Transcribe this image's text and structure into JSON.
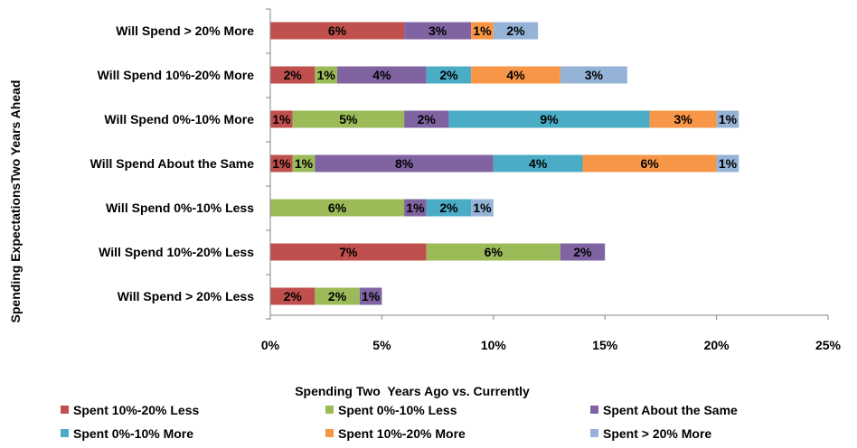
{
  "chart_data": {
    "type": "bar",
    "orientation": "horizontal",
    "stacked": true,
    "title": "",
    "xlabel": "Spending Two  Years Ago vs. Currently",
    "ylabel": "Spending ExpectationsTwo Years Ahead",
    "xlim": [
      0,
      25
    ],
    "x_ticks": [
      "0%",
      "5%",
      "10%",
      "15%",
      "20%",
      "25%"
    ],
    "grid": false,
    "legend_position": "bottom",
    "categories": [
      "Will Spend > 20% More",
      "Will Spend 10%-20% More",
      "Will Spend 0%-10% More",
      "Will Spend About the Same",
      "Will Spend 0%-10% Less",
      "Will Spend 10%-20% Less",
      "Will Spend > 20% Less"
    ],
    "series": [
      {
        "name": "Spent 10%-20% Less",
        "color": "#c0504d",
        "values": [
          6,
          2,
          1,
          1,
          0,
          7,
          2
        ]
      },
      {
        "name": "Spent 0%-10% Less",
        "color": "#9bbb59",
        "values": [
          0,
          1,
          5,
          1,
          6,
          6,
          2
        ]
      },
      {
        "name": "Spent About the Same",
        "color": "#8064a2",
        "values": [
          3,
          4,
          2,
          8,
          1,
          2,
          1
        ]
      },
      {
        "name": "Spent 0%-10% More",
        "color": "#4bacc6",
        "values": [
          0,
          2,
          9,
          4,
          2,
          0,
          0
        ]
      },
      {
        "name": "Spent 10%-20% More",
        "color": "#f79646",
        "values": [
          1,
          4,
          3,
          6,
          0,
          0,
          0
        ]
      },
      {
        "name": "Spent > 20% More",
        "color": "#95b3d7",
        "values": [
          2,
          3,
          1,
          1,
          1,
          0,
          0
        ]
      }
    ]
  }
}
